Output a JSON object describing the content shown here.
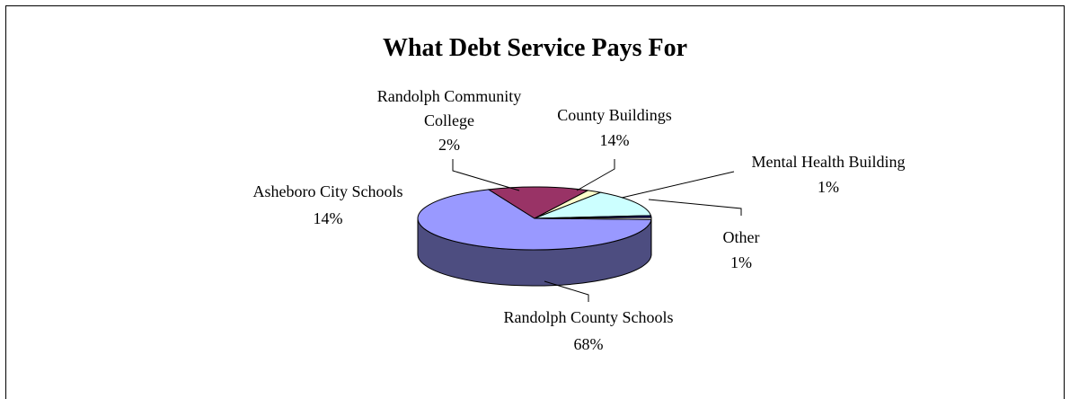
{
  "chart_data": {
    "type": "pie",
    "title": "What Debt Service Pays For",
    "slices": [
      {
        "name": "Randolph County Schools",
        "value": 68,
        "label": "68%",
        "color": "#9999ff",
        "side": "#4d4d80"
      },
      {
        "name": "Asheboro City Schools",
        "value": 14,
        "label": "14%",
        "color": "#993366",
        "side": "#4d1a33"
      },
      {
        "name": "Randolph Community College",
        "value": 2,
        "label": "2%",
        "color": "#ffffcc",
        "side": "#808066"
      },
      {
        "name": "County Buildings",
        "value": 14,
        "label": "14%",
        "color": "#ccffff",
        "side": "#668080"
      },
      {
        "name": "Mental Health Building",
        "value": 1,
        "label": "1%",
        "color": "#000080",
        "side": "#000040"
      },
      {
        "name": "Other",
        "value": 1,
        "label": "1%",
        "color": "#ffffff",
        "side": "#808080"
      }
    ]
  }
}
